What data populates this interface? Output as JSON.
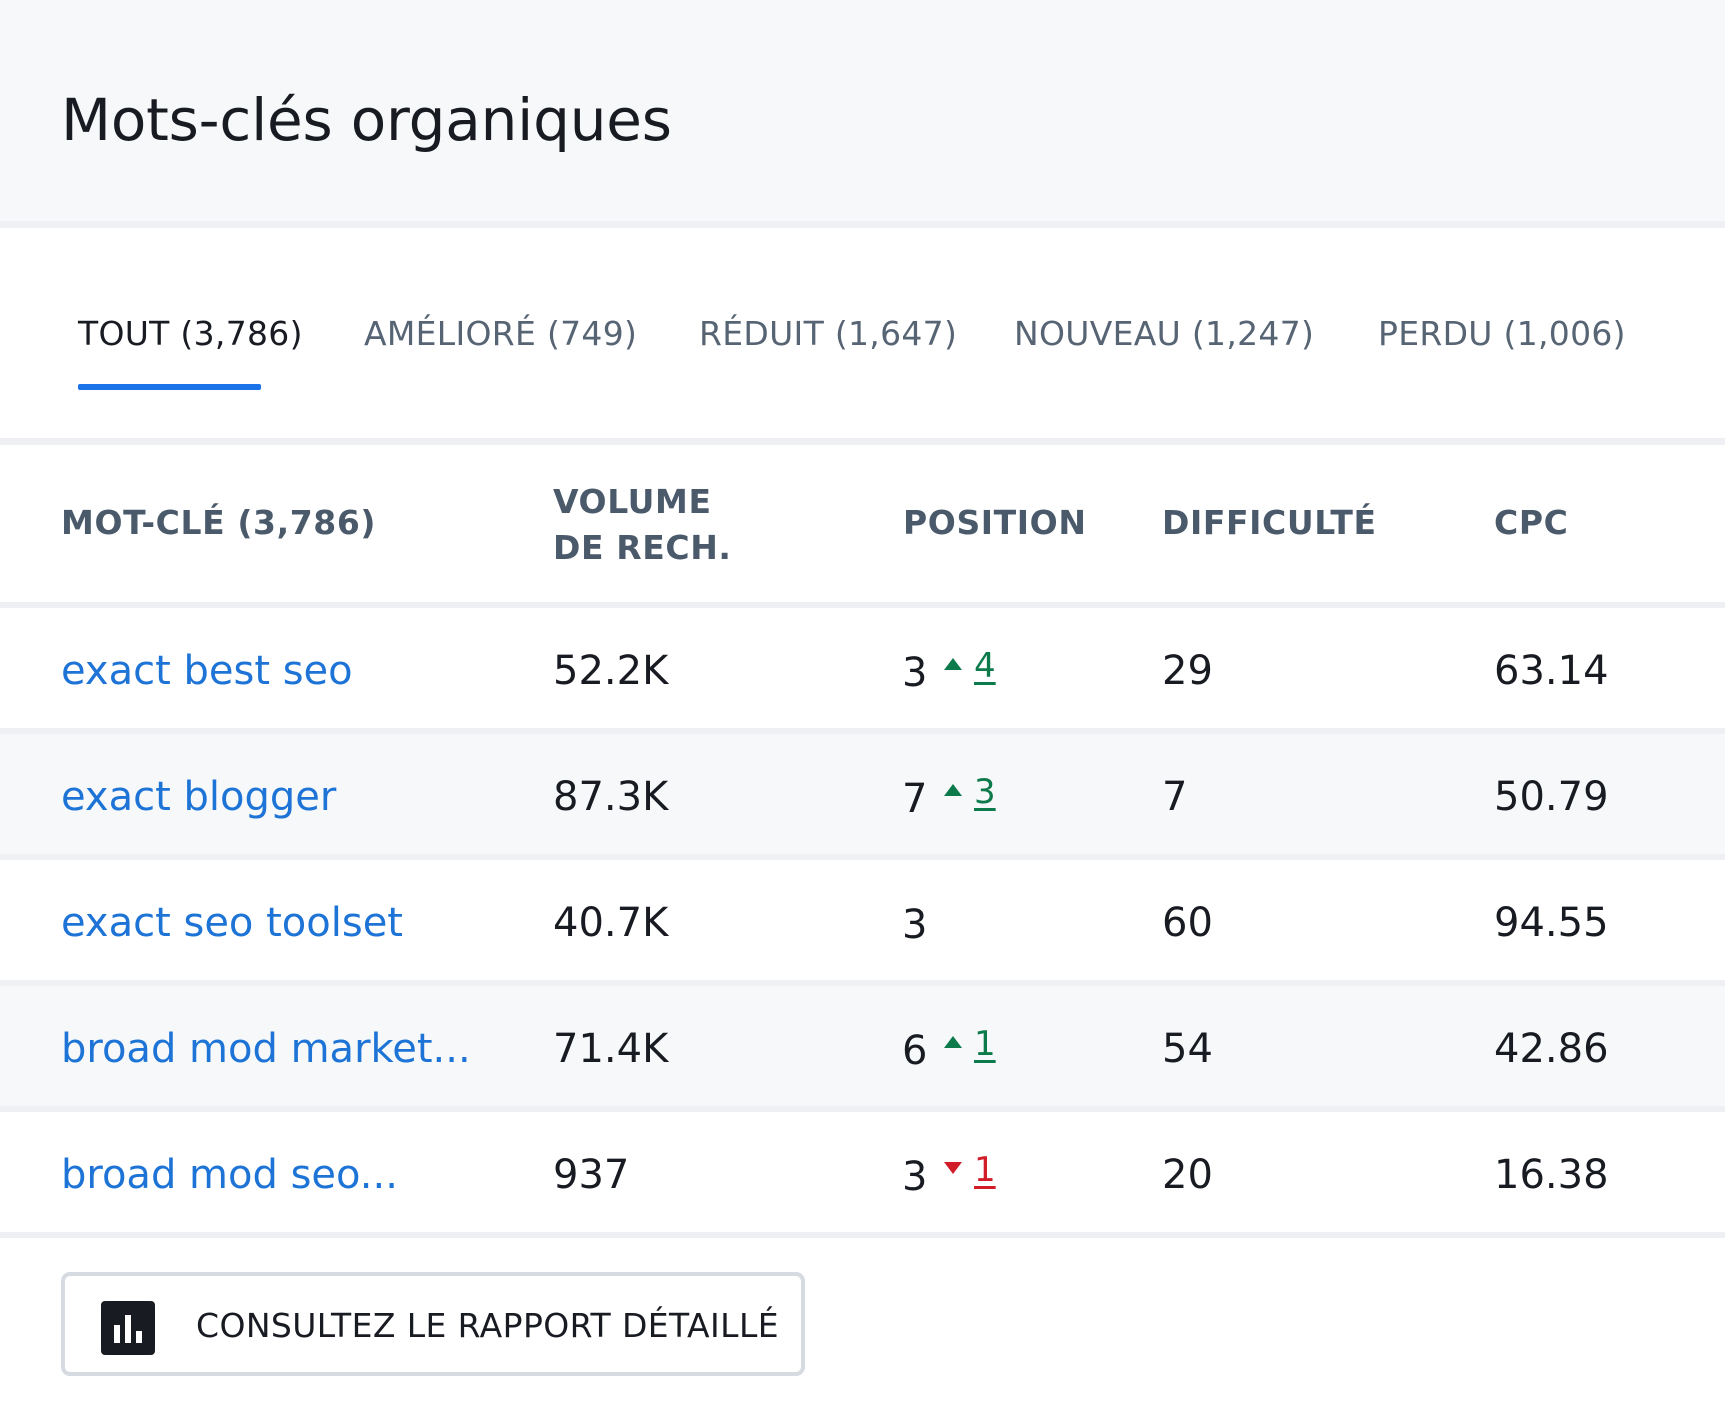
{
  "header": {
    "title": "Mots-clés organiques"
  },
  "tabs": [
    {
      "label": "TOUT (3,786)"
    },
    {
      "label": "AMÉLIORÉ (749)"
    },
    {
      "label": "RÉDUIT (1,647)"
    },
    {
      "label": "NOUVEAU (1,247)"
    },
    {
      "label": "PERDU (1,006)"
    }
  ],
  "columns": {
    "keyword": "MOT-CLÉ (3,786)",
    "volume_line1": "VOLUME",
    "volume_line2": "DE RECH.",
    "position": "POSITION",
    "difficulty": "DIFFICULTÉ",
    "cpc": "CPC"
  },
  "rows": [
    {
      "keyword": "exact best seo",
      "volume": "52.2K",
      "position": "3",
      "change": "4",
      "direction": "up",
      "difficulty": "29",
      "cpc": "63.14"
    },
    {
      "keyword": "exact blogger",
      "volume": "87.3K",
      "position": "7",
      "change": "3",
      "direction": "up",
      "difficulty": "7",
      "cpc": "50.79"
    },
    {
      "keyword": "exact seo toolset",
      "volume": "40.7K",
      "position": "3",
      "change": "",
      "direction": "none",
      "difficulty": "60",
      "cpc": "94.55"
    },
    {
      "keyword": "broad mod market...",
      "volume": "71.4K",
      "position": "6",
      "change": "1",
      "direction": "up",
      "difficulty": "54",
      "cpc": "42.86"
    },
    {
      "keyword": "broad mod seo...",
      "volume": "937",
      "position": "3",
      "change": "1",
      "direction": "down",
      "difficulty": "20",
      "cpc": "16.38"
    }
  ],
  "colors": {
    "accent": "#1a73e8",
    "link": "#1d74d6",
    "up": "#0c7a4a",
    "down": "#d11d2a"
  },
  "report_button": {
    "label": "CONSULTEZ LE RAPPORT DÉTAILLÉ",
    "icon": "bar-chart-icon"
  }
}
